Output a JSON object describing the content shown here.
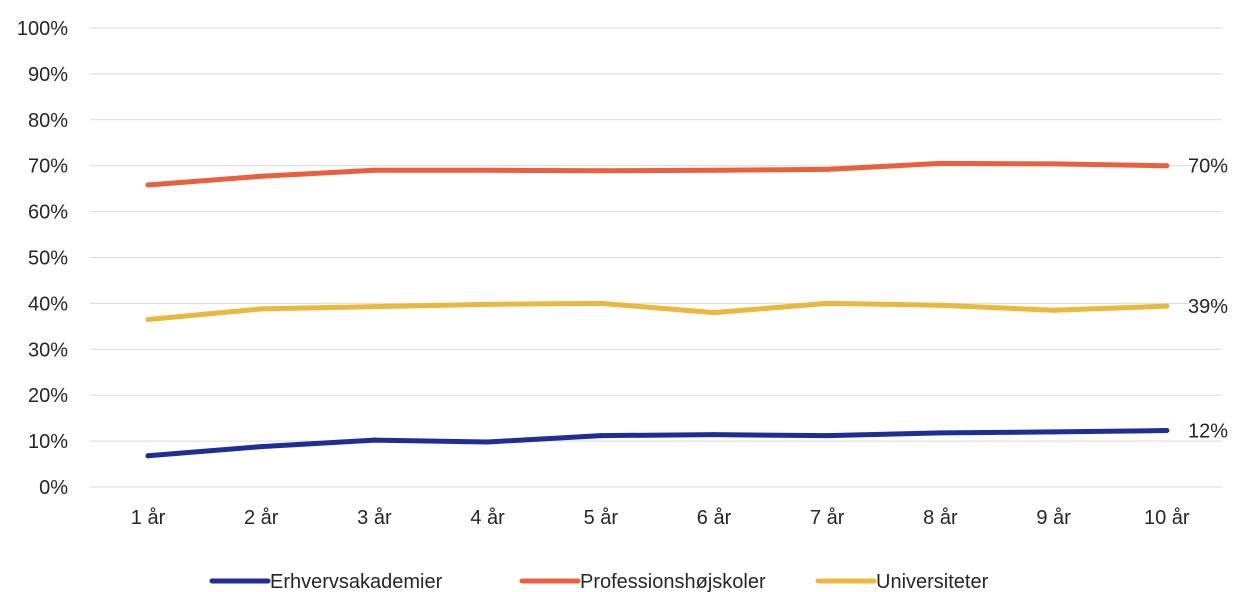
{
  "chart_data": {
    "type": "line",
    "title": "",
    "xlabel": "",
    "ylabel": "",
    "categories": [
      "1 år",
      "2 år",
      "3 år",
      "4 år",
      "5 år",
      "6 år",
      "7 år",
      "8 år",
      "9 år",
      "10 år"
    ],
    "ylim": [
      0,
      100
    ],
    "yticks": [
      "0%",
      "10%",
      "20%",
      "30%",
      "40%",
      "50%",
      "60%",
      "70%",
      "80%",
      "90%",
      "100%"
    ],
    "grid": true,
    "legend_position": "bottom",
    "series": [
      {
        "name": "Erhvervsakademier",
        "color": "#1f2d96",
        "values": [
          6.8,
          8.8,
          10.2,
          9.8,
          11.2,
          11.4,
          11.2,
          11.8,
          12.0,
          12.3
        ],
        "end_label": "12%"
      },
      {
        "name": "Professionshøjskoler",
        "color": "#e8603c",
        "values": [
          65.8,
          67.7,
          69.0,
          69.0,
          68.9,
          69.0,
          69.2,
          70.5,
          70.4,
          70.0
        ],
        "end_label": "70%"
      },
      {
        "name": "Universiteter",
        "color": "#e9b83c",
        "values": [
          36.5,
          38.8,
          39.3,
          39.8,
          40.0,
          38.0,
          40.0,
          39.6,
          38.5,
          39.4
        ],
        "end_label": "39%"
      }
    ]
  }
}
